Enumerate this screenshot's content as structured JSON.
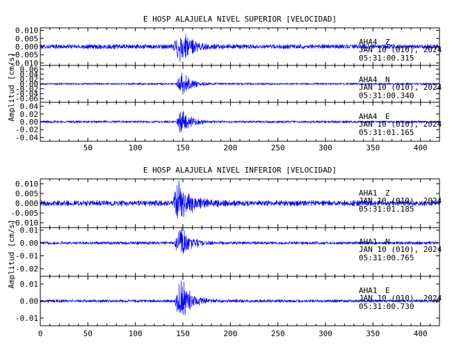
{
  "chart_data": [
    {
      "type": "line",
      "title": "E HOSP ALAJUELA NIVEL SUPERIOR [VELOCIDAD]",
      "ylabel": "Amplitud [cm/s]",
      "x_ticks": [
        "50",
        "100",
        "150",
        "200",
        "250",
        "300",
        "350",
        "400"
      ],
      "xlim": [
        0,
        420
      ],
      "traces": [
        {
          "station": "AHA4",
          "component": "Z",
          "date": "JAN 10 (010), 2024",
          "time": "05:31:00.315",
          "ylim": [
            -0.0115,
            0.0115
          ],
          "y_ticks": [
            "0.010",
            "0.005",
            "0.000",
            "-0.005",
            "-0.010"
          ],
          "noise_amp": 0.0015,
          "event_amp": 0.0105,
          "event_start": 139,
          "event_peak": 146,
          "decay": 11
        },
        {
          "station": "AHA4",
          "component": "N",
          "date": "JAN 10 (010), 2024",
          "time": "05:31:00.340",
          "ylim": [
            -0.075,
            0.075
          ],
          "y_ticks": [
            "0.06",
            "0.04",
            "0.02",
            "0.00",
            "-0.02",
            "-0.04",
            "-0.06"
          ],
          "noise_amp": 0.0035,
          "event_amp": 0.05,
          "event_start": 143,
          "event_peak": 149,
          "decay": 9
        },
        {
          "station": "AHA4",
          "component": "E",
          "date": "JAN 10 (010), 2024",
          "time": "05:31:01.165",
          "ylim": [
            -0.05,
            0.05
          ],
          "y_ticks": [
            "0.04",
            "0.02",
            "0.00",
            "-0.02",
            "-0.04"
          ],
          "noise_amp": 0.003,
          "event_amp": 0.035,
          "event_start": 143,
          "event_peak": 149,
          "decay": 9
        }
      ]
    },
    {
      "type": "line",
      "title": "E HOSP ALAJUELA NIVEL INFERIOR [VELOCIDAD]",
      "ylabel": "Amplitud [cm/s]",
      "x_ticks": [
        "0",
        "50",
        "100",
        "150",
        "200",
        "250",
        "300",
        "350",
        "400"
      ],
      "xlim": [
        0,
        420
      ],
      "traces": [
        {
          "station": "AHA1",
          "component": "Z",
          "date": "JAN 10 (010), 2024",
          "time": "05:31:01.185",
          "ylim": [
            -0.0125,
            0.0125
          ],
          "y_ticks": [
            "0.010",
            "0.005",
            "0.000",
            "-0.005",
            "-0.010"
          ],
          "noise_amp": 0.0015,
          "event_amp": 0.0115,
          "event_start": 139,
          "event_peak": 145,
          "decay": 12
        },
        {
          "station": "AHA1",
          "component": "N",
          "date": "JAN 10 (010), 2024",
          "time": "05:31:00.765",
          "ylim": [
            -0.026,
            0.012
          ],
          "y_ticks": [
            "0.01",
            "0.00",
            "-0.01",
            "-0.02"
          ],
          "noise_amp": 0.0012,
          "event_amp": 0.014,
          "event_start": 141,
          "event_peak": 147,
          "decay": 9
        },
        {
          "station": "AHA1",
          "component": "E",
          "date": "JAN 10 (010), 2024",
          "time": "05:31:00.730",
          "ylim": [
            -0.0145,
            0.0145
          ],
          "y_ticks": [
            "0.01",
            "0.00",
            "-0.01"
          ],
          "noise_amp": 0.0009,
          "event_amp": 0.0135,
          "event_start": 141,
          "event_peak": 148,
          "decay": 10
        }
      ]
    }
  ]
}
